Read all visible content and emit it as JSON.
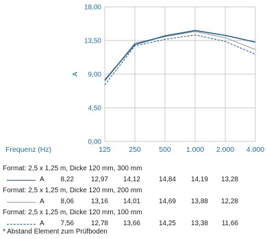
{
  "chart_data": {
    "type": "line",
    "xlabel": "Frequenz (Hz)",
    "ylabel": "A",
    "categories": [
      "125",
      "250",
      "500",
      "1.000",
      "2.000",
      "4.000"
    ],
    "yticks": [
      "0,00",
      "4,50",
      "9,00",
      "13,50",
      "18,00"
    ],
    "ylim": [
      0,
      18
    ],
    "grid": true,
    "series": [
      {
        "name": "A",
        "format": "Format: 2,5 x 1,25 m, Dicke 120 mm, 300 mm",
        "style": "solid-thick",
        "color": "#1f5f96",
        "values": [
          8.22,
          12.97,
          14.12,
          14.84,
          14.19,
          13.28
        ],
        "labels": [
          "8,22",
          "12,97",
          "14,12",
          "14,84",
          "14,19",
          "13,28"
        ]
      },
      {
        "name": "A",
        "format": "Format: 2,5 x 1,25 m, Dicke 120 mm, 200 mm",
        "style": "solid-thin",
        "color": "#9a9a9a",
        "values": [
          8.06,
          13.16,
          14.01,
          14.69,
          13.88,
          12.28
        ],
        "labels": [
          "8,06",
          "13,16",
          "14,01",
          "14,69",
          "13,88",
          "12,28"
        ]
      },
      {
        "name": "A",
        "format": "Format: 2,5 x 1,25 m, Dicke 120 mm, 100 mm",
        "style": "dashed",
        "color": "#1f5f96",
        "values": [
          7.56,
          12.78,
          13.66,
          14.25,
          13.38,
          11.66
        ],
        "labels": [
          "7,56",
          "12,78",
          "13,66",
          "14,25",
          "13,38",
          "11,66"
        ]
      }
    ]
  },
  "table": {
    "footnote": "* Abstand Element zum Prüfboden"
  },
  "colors": {
    "accent": "#1a6fa8",
    "grid": "#c8c8c8"
  }
}
